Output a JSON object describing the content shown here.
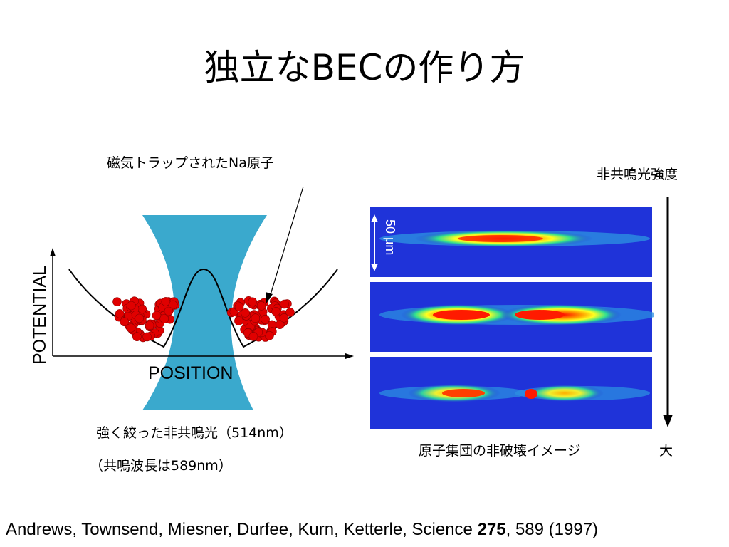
{
  "title": "独立なBECの作り方",
  "diagram": {
    "trap_label": "磁気トラップされたNa原子",
    "potential_axis": "POTENTIAL",
    "position_axis": "POSITION",
    "beam_caption_1": "強く絞った非共鳴光（514nm）",
    "beam_caption_2": "（共鳴波長は589nm）"
  },
  "images": {
    "scale_label": "50 μm",
    "intensity_label": "非共鳴光強度",
    "intensity_large": "大",
    "caption": "原子集団の非破壊イメージ"
  },
  "citation": {
    "authors": "Andrews, Townsend, Miesner, Durfee, Kurn, Ketterle, Science ",
    "volume": "275",
    "rest": ", 589 (1997)"
  },
  "colors": {
    "beam": "#3aa9cd",
    "atoms": "#e00000",
    "image_background": "#1f33d9"
  }
}
